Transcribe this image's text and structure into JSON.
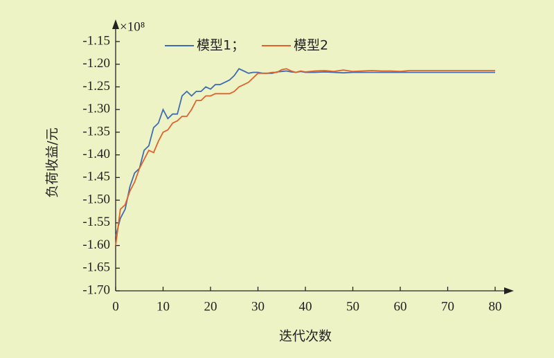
{
  "chart_data": {
    "type": "line",
    "multiplier": "×10⁸",
    "xlabel": "迭代次数",
    "ylabel": "负荷收益/元",
    "x": [
      0,
      1,
      2,
      3,
      4,
      5,
      6,
      7,
      8,
      9,
      10,
      11,
      12,
      13,
      14,
      15,
      16,
      17,
      18,
      19,
      20,
      21,
      22,
      23,
      24,
      25,
      26,
      27,
      28,
      29,
      30,
      31,
      32,
      33,
      34,
      35,
      36,
      37,
      38,
      39,
      40,
      42,
      44,
      46,
      48,
      50,
      52,
      54,
      56,
      58,
      60,
      62,
      64,
      66,
      68,
      70,
      72,
      74,
      76,
      78,
      80
    ],
    "series": [
      {
        "name": "模型1；",
        "color": "#3d6cb0",
        "values": [
          -1.58,
          -1.54,
          -1.52,
          -1.47,
          -1.44,
          -1.43,
          -1.39,
          -1.38,
          -1.34,
          -1.33,
          -1.3,
          -1.32,
          -1.31,
          -1.31,
          -1.27,
          -1.26,
          -1.27,
          -1.26,
          -1.26,
          -1.25,
          -1.255,
          -1.245,
          -1.245,
          -1.24,
          -1.235,
          -1.225,
          -1.21,
          -1.215,
          -1.22,
          -1.218,
          -1.218,
          -1.22,
          -1.22,
          -1.22,
          -1.217,
          -1.216,
          -1.215,
          -1.217,
          -1.218,
          -1.216,
          -1.218,
          -1.218,
          -1.217,
          -1.218,
          -1.219,
          -1.218,
          -1.218,
          -1.218,
          -1.218,
          -1.218,
          -1.218,
          -1.218,
          -1.218,
          -1.218,
          -1.218,
          -1.218,
          -1.218,
          -1.218,
          -1.218,
          -1.218,
          -1.218
        ]
      },
      {
        "name": "模型2",
        "color": "#e0622a",
        "values": [
          -1.6,
          -1.52,
          -1.51,
          -1.48,
          -1.46,
          -1.43,
          -1.41,
          -1.39,
          -1.395,
          -1.37,
          -1.35,
          -1.345,
          -1.33,
          -1.325,
          -1.315,
          -1.315,
          -1.3,
          -1.28,
          -1.28,
          -1.27,
          -1.27,
          -1.265,
          -1.265,
          -1.265,
          -1.265,
          -1.26,
          -1.25,
          -1.245,
          -1.24,
          -1.23,
          -1.22,
          -1.22,
          -1.22,
          -1.218,
          -1.218,
          -1.212,
          -1.21,
          -1.215,
          -1.218,
          -1.215,
          -1.217,
          -1.215,
          -1.214,
          -1.216,
          -1.213,
          -1.216,
          -1.215,
          -1.214,
          -1.215,
          -1.215,
          -1.216,
          -1.214,
          -1.214,
          -1.214,
          -1.214,
          -1.214,
          -1.214,
          -1.214,
          -1.214,
          -1.214,
          -1.214
        ]
      }
    ],
    "xlim": [
      0,
      80
    ],
    "xticks": [
      0,
      10,
      20,
      30,
      40,
      50,
      60,
      70,
      80
    ],
    "ylim": [
      -1.7,
      -1.15
    ],
    "yticks": [
      {
        "value": -1.7,
        "label": "-1.70"
      },
      -1.65,
      {
        "value": -1.6,
        "label": "-1.60"
      },
      -1.55,
      {
        "value": -1.5,
        "label": "-1.50"
      },
      -1.45,
      {
        "value": -1.4,
        "label": "-1.40"
      },
      -1.35,
      {
        "value": -1.3,
        "label": "-1.30"
      },
      -1.25,
      {
        "value": -1.2,
        "label": "-1.20"
      },
      -1.15
    ]
  }
}
